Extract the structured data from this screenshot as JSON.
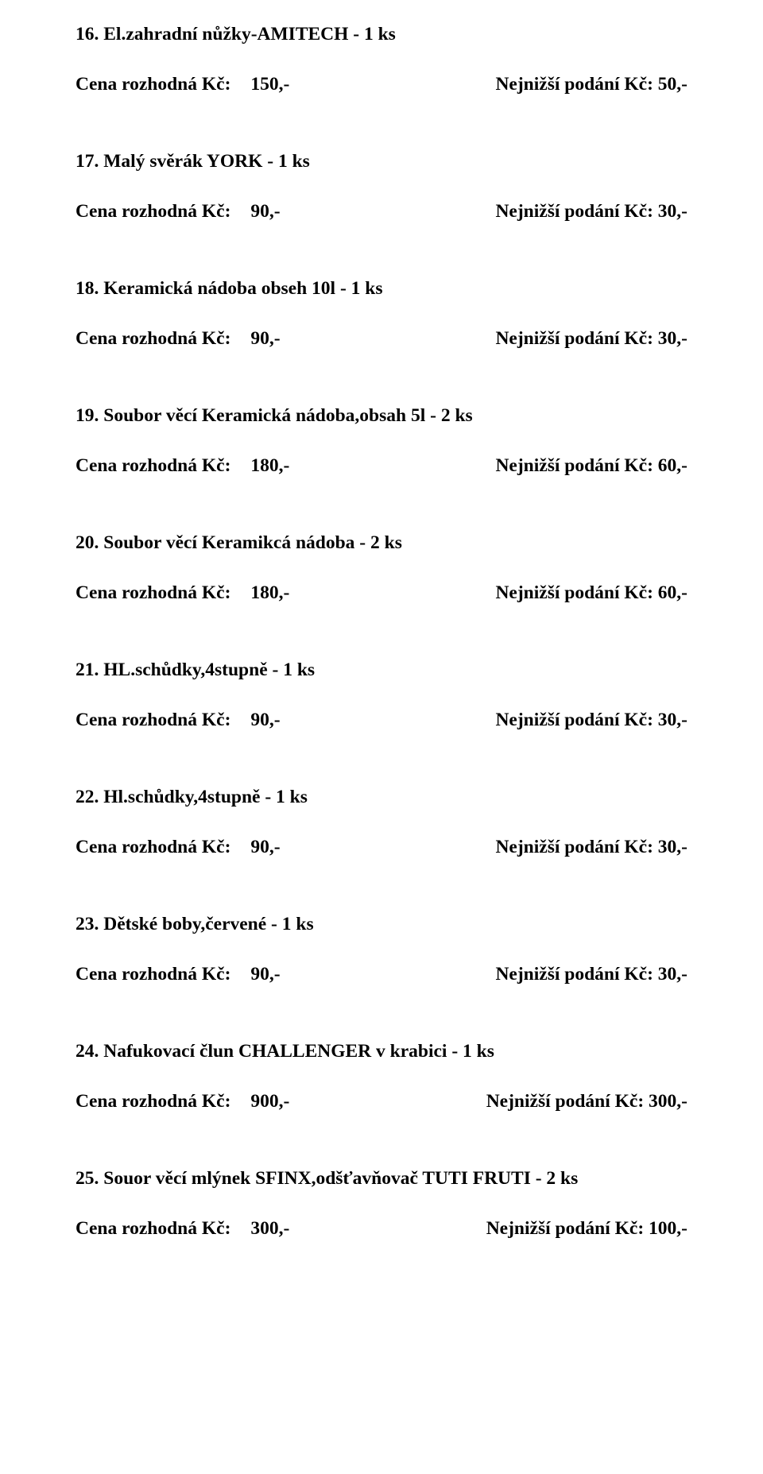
{
  "labels": {
    "price_label": "Cena rozhodná Kč:",
    "bid_label": "Nejnižší podání Kč:"
  },
  "items": [
    {
      "num": "16.",
      "name": "El.zahradní nůžky-AMITECH - 1 ks",
      "price": "150,-",
      "bid": "50,-"
    },
    {
      "num": "17.",
      "name": "Malý svěrák YORK - 1 ks",
      "price": "90,-",
      "bid": "30,-"
    },
    {
      "num": "18.",
      "name": "Keramická nádoba obseh 10l - 1 ks",
      "price": "90,-",
      "bid": "30,-"
    },
    {
      "num": "19.",
      "name": "Soubor věcí Keramická nádoba,obsah 5l - 2 ks",
      "price": "180,-",
      "bid": "60,-"
    },
    {
      "num": "20.",
      "name": "Soubor věcí Keramikcá nádoba - 2 ks",
      "price": "180,-",
      "bid": "60,-"
    },
    {
      "num": "21.",
      "name": "HL.schůdky,4stupně - 1 ks",
      "price": "90,-",
      "bid": "30,-"
    },
    {
      "num": "22.",
      "name": "Hl.schůdky,4stupně - 1 ks",
      "price": "90,-",
      "bid": "30,-"
    },
    {
      "num": "23.",
      "name": "Dětské boby,červené - 1 ks",
      "price": "90,-",
      "bid": "30,-"
    },
    {
      "num": "24.",
      "name": "Nafukovací člun CHALLENGER v krabici - 1 ks",
      "price": "900,-",
      "bid": "300,-"
    },
    {
      "num": "25.",
      "name": "Souor věcí mlýnek SFINX,odšťavňovač TUTI FRUTI - 2 ks",
      "price": "300,-",
      "bid": "100,-"
    }
  ]
}
